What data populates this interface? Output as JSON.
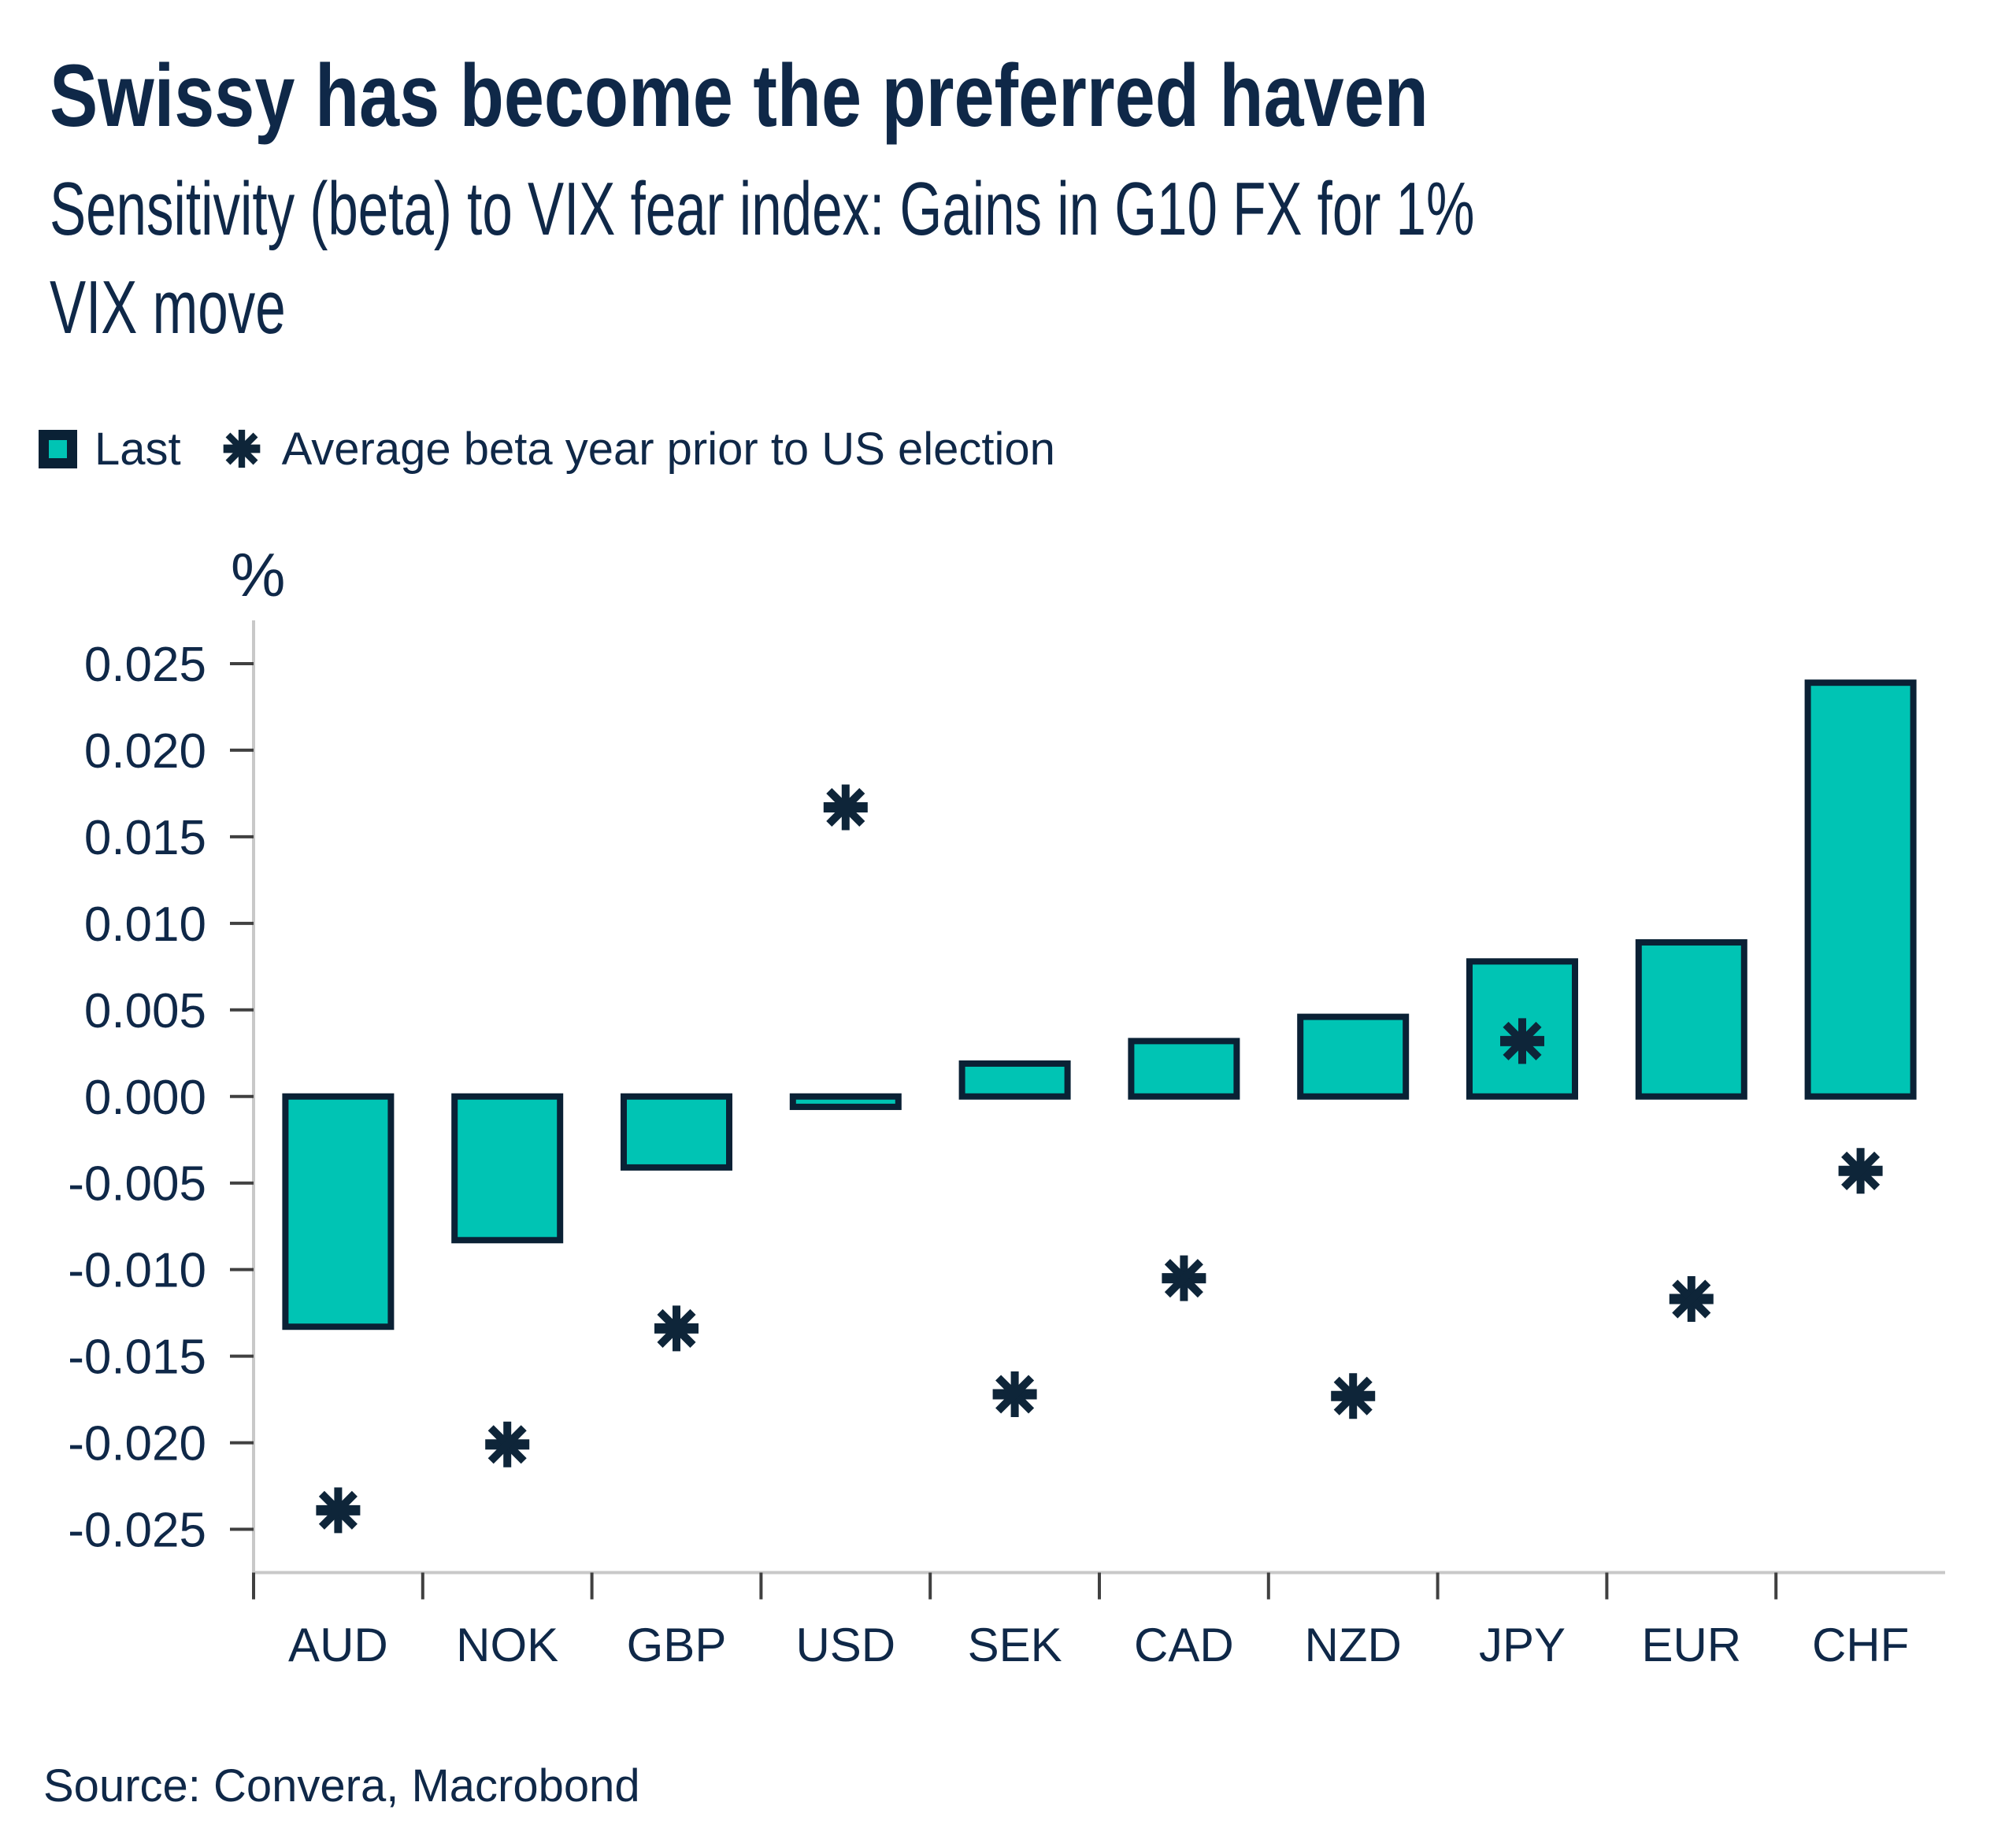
{
  "title": "Swissy has become the preferred haven",
  "subtitle_lines": [
    "Sensitivity (beta) to VIX fear index: Gains in G10 FX for 1%",
    "VIX move"
  ],
  "source": "Source: Convera, Macrobond",
  "colors": {
    "navy_text": "#0f2848",
    "bar_fill": "#00c4b4",
    "bar_border": "#0a2135",
    "marker": "#0e2539",
    "axis_line": "#c8c8c8",
    "tick": "#404040"
  },
  "chart_data": {
    "type": "bar",
    "title": "Swissy has become the preferred haven",
    "subtitle": "Sensitivity (beta) to VIX fear index: Gains in G10 FX for 1% VIX move",
    "categories": [
      "AUD",
      "NOK",
      "GBP",
      "USD",
      "SEK",
      "CAD",
      "NZD",
      "JPY",
      "EUR",
      "CHF"
    ],
    "series": [
      {
        "name": "Last",
        "type": "bar",
        "values": [
          -0.0133,
          -0.0083,
          -0.0041,
          -0.0006,
          0.0019,
          0.0032,
          0.0046,
          0.0078,
          0.0089,
          0.0239
        ]
      },
      {
        "name": "Average beta year prior to US election",
        "type": "scatter",
        "marker": "asterisk",
        "values": [
          -0.0239,
          -0.0201,
          -0.0134,
          0.0167,
          -0.0172,
          -0.0105,
          -0.0173,
          0.0032,
          -0.0117,
          -0.0043
        ]
      }
    ],
    "ylabel": "%",
    "ylim": [
      -0.0275,
      0.0275
    ],
    "ytick_step": 0.005,
    "ytick_labels": [
      "0.025",
      "0.020",
      "0.015",
      "0.010",
      "0.005",
      "0.000",
      "-0.005",
      "-0.010",
      "-0.015",
      "-0.020",
      "-0.025"
    ],
    "grid": false,
    "legend_position": "top-left"
  }
}
